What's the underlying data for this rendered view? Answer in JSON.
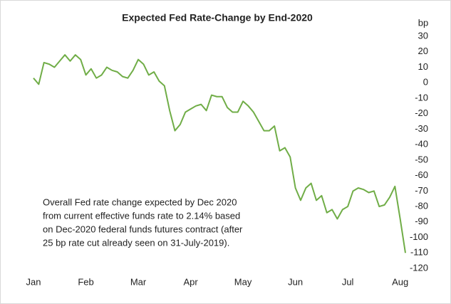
{
  "chart_data": {
    "type": "line",
    "title": "Expected Fed Rate-Change by End-2020",
    "y_axis_label": "bp",
    "annotation": [
      "Overall Fed rate change expected by Dec 2020",
      "from current effective funds rate to 2.14% based",
      "on Dec-2020 federal funds futures contract (after",
      "25 bp rate cut already seen on 31-July-2019)."
    ],
    "categories": [
      "Jan",
      null,
      null,
      null,
      null,
      null,
      null,
      null,
      null,
      null,
      "Feb",
      null,
      null,
      null,
      null,
      null,
      null,
      null,
      null,
      null,
      "Mar",
      null,
      null,
      null,
      null,
      null,
      null,
      null,
      null,
      null,
      "Apr",
      null,
      null,
      null,
      null,
      null,
      null,
      null,
      null,
      null,
      "May",
      null,
      null,
      null,
      null,
      null,
      null,
      null,
      null,
      null,
      "Jun",
      null,
      null,
      null,
      null,
      null,
      null,
      null,
      null,
      null,
      "Jul",
      null,
      null,
      null,
      null,
      null,
      null,
      null,
      null,
      null,
      "Aug",
      null
    ],
    "values": [
      3,
      -1,
      13,
      12,
      10,
      14,
      18,
      14,
      18,
      15,
      5,
      9,
      3,
      5,
      10,
      8,
      7,
      4,
      3,
      8,
      15,
      12,
      5,
      7,
      1,
      -2,
      -18,
      -31,
      -27,
      -19,
      -17,
      -15,
      -14,
      -18,
      -8,
      -9,
      -9,
      -16,
      -19,
      -19,
      -12,
      -15,
      -19,
      -25,
      -31,
      -31,
      -28,
      -44,
      -42,
      -48,
      -68,
      -76,
      -68,
      -65,
      -76,
      -73,
      -84,
      -82,
      -88,
      -82,
      -80,
      -70,
      -68,
      -69,
      -71,
      -70,
      -80,
      -79,
      -74,
      -67,
      -88,
      -110
    ],
    "color": "#70ad47",
    "ylim": [
      -120,
      30
    ],
    "yticks": [
      30,
      20,
      10,
      0,
      -10,
      -20,
      -30,
      -40,
      -50,
      -60,
      -70,
      -80,
      -90,
      -100,
      -110,
      -120
    ],
    "y_axis_side": "right",
    "grid": false
  }
}
